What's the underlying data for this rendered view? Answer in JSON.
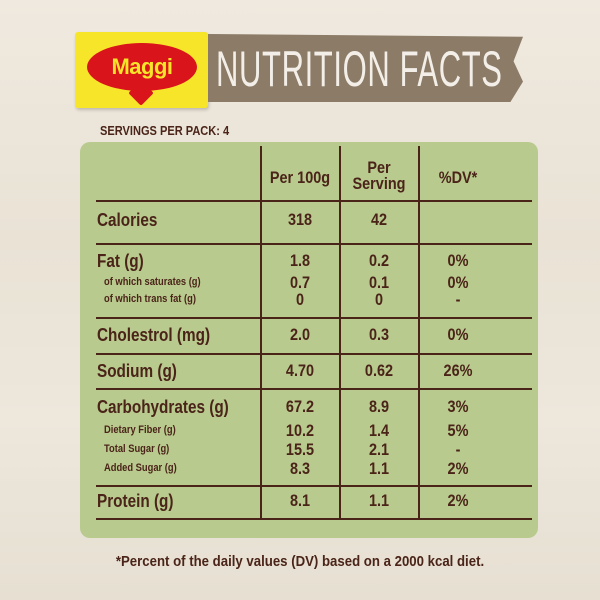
{
  "brand": "Maggi",
  "title": "NUTRITION FACTS",
  "servings": "SERVINGS PER PACK: 4",
  "headers": {
    "per100": "Per 100g",
    "per_serving_1": "Per",
    "per_serving_2": "Serving",
    "dv": "%DV*"
  },
  "rows": [
    {
      "label": "Calories",
      "per100": "318",
      "serving": "42",
      "dv": ""
    },
    {
      "label": "Fat (g)",
      "per100": "1.8",
      "serving": "0.2",
      "dv": "0%"
    },
    {
      "label": "of which saturates (g)",
      "per100": "0.7",
      "serving": "0.1",
      "dv": "0%"
    },
    {
      "label": "of which trans fat (g)",
      "per100": "0",
      "serving": "0",
      "dv": "-"
    },
    {
      "label": "Cholestrol (mg)",
      "per100": "2.0",
      "serving": "0.3",
      "dv": "0%"
    },
    {
      "label": "Sodium (g)",
      "per100": "4.70",
      "serving": "0.62",
      "dv": "26%"
    },
    {
      "label": "Carbohydrates (g)",
      "per100": "67.2",
      "serving": "8.9",
      "dv": "3%"
    },
    {
      "label": "Dietary Fiber (g)",
      "per100": "10.2",
      "serving": "1.4",
      "dv": "5%"
    },
    {
      "label": "Total Sugar (g)",
      "per100": "15.5",
      "serving": "2.1",
      "dv": "-"
    },
    {
      "label": "Added Sugar (g)",
      "per100": "8.3",
      "serving": "1.1",
      "dv": "2%"
    },
    {
      "label": "Protein (g)",
      "per100": "8.1",
      "serving": "1.1",
      "dv": "2%"
    }
  ],
  "footnote": "*Percent of the daily values (DV) based on a 2000 kcal diet.",
  "colors": {
    "logo_yellow": "#f7e52a",
    "logo_red": "#d9141b",
    "panel_green": "#b9ca8f",
    "text_brown": "#4a2418",
    "band": "#8b7b67"
  }
}
